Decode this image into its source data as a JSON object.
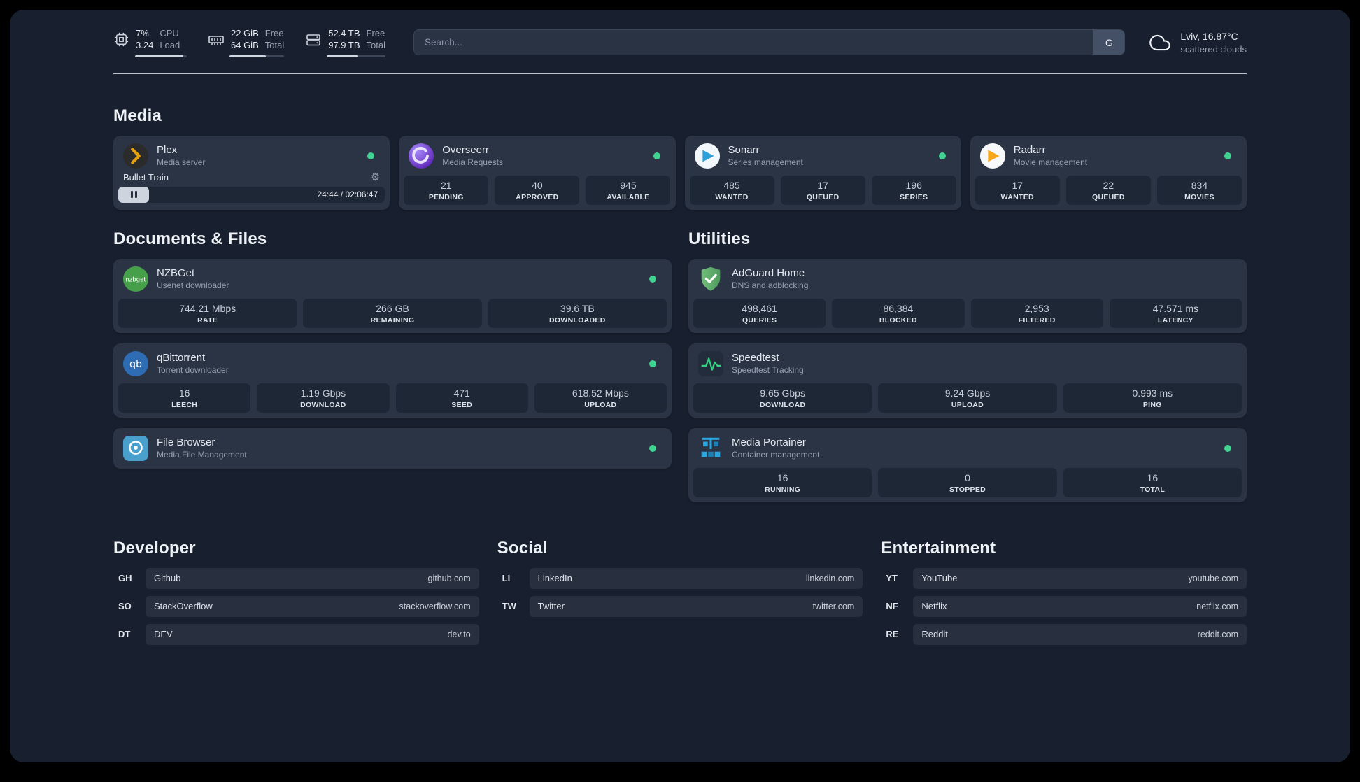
{
  "theme": {
    "page-bg": "#18202f",
    "card-bg": "#2b3445",
    "stat-bg": "#1e2735",
    "pill-bg": "#28303f",
    "text-primary": "#e7ebf1",
    "text-secondary": "#98a2b3",
    "status-online": "#41d392",
    "bar-track": "#3c4759",
    "bar-fill": "#d0d6e0",
    "search-bg": "#2a3344",
    "search-border": "#3c4658",
    "search-btn": "#435066"
  },
  "topbar": {
    "resources": [
      {
        "icon": "cpu-icon",
        "value_top": "7%",
        "value_bottom": "3.24",
        "label_top": "CPU",
        "label_bottom": "Load",
        "progress": 93
      },
      {
        "icon": "memory-icon",
        "value_top": "22 GiB",
        "value_bottom": "64 GiB",
        "label_top": "Free",
        "label_bottom": "Total",
        "progress": 66
      },
      {
        "icon": "disk-icon",
        "value_top": "52.4 TB",
        "value_bottom": "97.9 TB",
        "label_top": "Free",
        "label_bottom": "Total",
        "progress": 53
      }
    ],
    "search": {
      "placeholder": "Search...",
      "button": "G"
    },
    "weather": {
      "icon": "cloud-icon",
      "location": "Lviv, 16.87°C",
      "condition": "scattered clouds"
    }
  },
  "sections": {
    "media": {
      "title": "Media",
      "plex": {
        "icon": "plex-icon",
        "name": "Plex",
        "desc": "Media server",
        "now_playing": "Bullet Train",
        "time": "24:44 / 02:06:47"
      },
      "overseerr": {
        "icon": "overseerr-icon",
        "name": "Overseerr",
        "desc": "Media Requests",
        "stats": [
          {
            "value": "21",
            "label": "PENDING"
          },
          {
            "value": "40",
            "label": "APPROVED"
          },
          {
            "value": "945",
            "label": "AVAILABLE"
          }
        ]
      },
      "sonarr": {
        "icon": "sonarr-icon",
        "name": "Sonarr",
        "desc": "Series management",
        "stats": [
          {
            "value": "485",
            "label": "WANTED"
          },
          {
            "value": "17",
            "label": "QUEUED"
          },
          {
            "value": "196",
            "label": "SERIES"
          }
        ]
      },
      "radarr": {
        "icon": "radarr-icon",
        "name": "Radarr",
        "desc": "Movie management",
        "stats": [
          {
            "value": "17",
            "label": "WANTED"
          },
          {
            "value": "22",
            "label": "QUEUED"
          },
          {
            "value": "834",
            "label": "MOVIES"
          }
        ]
      }
    },
    "documents": {
      "title": "Documents & Files",
      "nzbget": {
        "icon": "nzbget-icon",
        "name": "NZBGet",
        "desc": "Usenet downloader",
        "stats": [
          {
            "value": "744.21 Mbps",
            "label": "RATE"
          },
          {
            "value": "266 GB",
            "label": "REMAINING"
          },
          {
            "value": "39.6 TB",
            "label": "DOWNLOADED"
          }
        ]
      },
      "qbittorrent": {
        "icon": "qbittorrent-icon",
        "name": "qBittorrent",
        "desc": "Torrent downloader",
        "stats": [
          {
            "value": "16",
            "label": "LEECH"
          },
          {
            "value": "1.19 Gbps",
            "label": "DOWNLOAD"
          },
          {
            "value": "471",
            "label": "SEED"
          },
          {
            "value": "618.52 Mbps",
            "label": "UPLOAD"
          }
        ]
      },
      "filebrowser": {
        "icon": "filebrowser-icon",
        "name": "File Browser",
        "desc": "Media File Management"
      }
    },
    "utilities": {
      "title": "Utilities",
      "adguard": {
        "icon": "adguard-icon",
        "name": "AdGuard Home",
        "desc": "DNS and adblocking",
        "stats": [
          {
            "value": "498,461",
            "label": "QUERIES"
          },
          {
            "value": "86,384",
            "label": "BLOCKED"
          },
          {
            "value": "2,953",
            "label": "FILTERED"
          },
          {
            "value": "47.571 ms",
            "label": "LATENCY"
          }
        ]
      },
      "speedtest": {
        "icon": "speedtest-icon",
        "name": "Speedtest",
        "desc": "Speedtest Tracking",
        "stats": [
          {
            "value": "9.65 Gbps",
            "label": "DOWNLOAD"
          },
          {
            "value": "9.24 Gbps",
            "label": "UPLOAD"
          },
          {
            "value": "0.993 ms",
            "label": "PING"
          }
        ]
      },
      "portainer": {
        "icon": "portainer-icon",
        "name": "Media Portainer",
        "desc": "Container management",
        "stats": [
          {
            "value": "16",
            "label": "RUNNING"
          },
          {
            "value": "0",
            "label": "STOPPED"
          },
          {
            "value": "16",
            "label": "TOTAL"
          }
        ]
      }
    },
    "bookmarks": {
      "developer": {
        "title": "Developer",
        "items": [
          {
            "abbr": "GH",
            "name": "Github",
            "domain": "github.com"
          },
          {
            "abbr": "SO",
            "name": "StackOverflow",
            "domain": "stackoverflow.com"
          },
          {
            "abbr": "DT",
            "name": "DEV",
            "domain": "dev.to"
          }
        ]
      },
      "social": {
        "title": "Social",
        "items": [
          {
            "abbr": "LI",
            "name": "LinkedIn",
            "domain": "linkedin.com"
          },
          {
            "abbr": "TW",
            "name": "Twitter",
            "domain": "twitter.com"
          }
        ]
      },
      "entertainment": {
        "title": "Entertainment",
        "items": [
          {
            "abbr": "YT",
            "name": "YouTube",
            "domain": "youtube.com"
          },
          {
            "abbr": "NF",
            "name": "Netflix",
            "domain": "netflix.com"
          },
          {
            "abbr": "RE",
            "name": "Reddit",
            "domain": "reddit.com"
          }
        ]
      }
    }
  }
}
